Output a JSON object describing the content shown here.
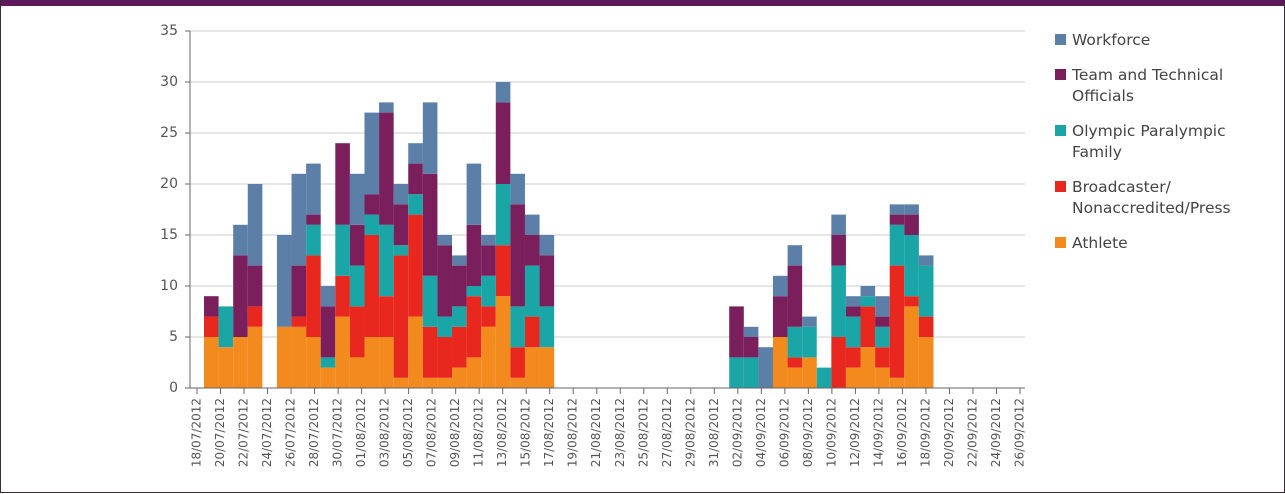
{
  "chart_data": {
    "type": "stacked_bar",
    "xtick_labels": [
      "18/07/2012",
      "20/07/2012",
      "22/07/2012",
      "24/07/2012",
      "26/07/2012",
      "28/07/2012",
      "30/07/2012",
      "01/08/2012",
      "03/08/2012",
      "05/08/2012",
      "07/08/2012",
      "09/08/2012",
      "11/08/2012",
      "13/08/2012",
      "15/08/2012",
      "17/08/2012",
      "19/08/2012",
      "21/08/2012",
      "23/08/2012",
      "25/08/2012",
      "27/08/2012",
      "29/08/2012",
      "31/08/2012",
      "02/09/2012",
      "04/09/2012",
      "06/09/2012",
      "08/09/2012",
      "10/09/2012",
      "12/09/2012",
      "14/09/2012",
      "16/09/2012",
      "18/09/2012",
      "20/09/2012",
      "22/09/2012",
      "24/09/2012",
      "26/09/2012"
    ],
    "ylim": [
      0,
      35
    ],
    "yticks": [
      0,
      5,
      10,
      15,
      20,
      25,
      30,
      35
    ],
    "grid": true,
    "legend": "right",
    "series": [
      {
        "name": "Athlete",
        "color": "#f28a1e",
        "values": [
          5,
          4,
          5,
          6,
          0,
          6,
          6,
          5,
          2,
          7,
          3,
          5,
          5,
          1,
          7,
          1,
          1,
          2,
          3,
          6,
          9,
          1,
          4,
          4,
          0,
          0,
          0,
          0,
          0,
          0,
          0,
          0,
          0,
          0,
          0,
          0,
          0,
          0,
          0,
          5,
          2,
          3,
          0,
          0,
          2,
          4,
          2,
          1,
          8,
          5,
          0,
          0,
          0,
          0,
          0,
          0
        ]
      },
      {
        "name": "Broadcaster/\nNonaccredited/Press",
        "color": "#e8281e",
        "values": [
          2,
          0,
          0,
          2,
          0,
          0,
          1,
          8,
          0,
          4,
          5,
          10,
          4,
          12,
          10,
          5,
          4,
          4,
          6,
          2,
          5,
          3,
          3,
          0,
          0,
          0,
          0,
          0,
          0,
          0,
          0,
          0,
          0,
          0,
          0,
          0,
          0,
          0,
          0,
          0,
          1,
          0,
          0,
          5,
          2,
          4,
          2,
          11,
          1,
          2,
          0,
          0,
          0,
          0,
          0,
          0
        ]
      },
      {
        "name": "Olympic Paralympic\nFamily",
        "color": "#1aa6a6",
        "values": [
          0,
          4,
          0,
          0,
          0,
          0,
          0,
          3,
          1,
          5,
          4,
          2,
          7,
          1,
          2,
          5,
          2,
          2,
          1,
          3,
          6,
          4,
          5,
          4,
          0,
          0,
          0,
          0,
          0,
          0,
          0,
          0,
          0,
          0,
          0,
          0,
          3,
          3,
          0,
          0,
          3,
          3,
          2,
          7,
          3,
          1,
          2,
          4,
          6,
          5,
          0,
          0,
          0,
          0,
          0,
          0
        ]
      },
      {
        "name": "Team and Technical\nOfficials",
        "color": "#7a1f5c",
        "values": [
          2,
          0,
          8,
          4,
          0,
          0,
          5,
          1,
          5,
          8,
          4,
          2,
          11,
          4,
          3,
          10,
          7,
          4,
          6,
          3,
          8,
          10,
          3,
          5,
          0,
          0,
          0,
          0,
          0,
          0,
          0,
          0,
          0,
          0,
          0,
          0,
          5,
          2,
          0,
          4,
          6,
          0,
          0,
          3,
          1,
          0,
          1,
          1,
          2,
          0,
          0,
          0,
          0,
          0,
          0,
          0
        ]
      },
      {
        "name": "Workforce",
        "color": "#5b7fa6",
        "values": [
          0,
          0,
          3,
          8,
          0,
          9,
          9,
          5,
          2,
          0,
          5,
          8,
          1,
          2,
          2,
          7,
          1,
          1,
          6,
          1,
          2,
          3,
          2,
          2,
          0,
          0,
          0,
          0,
          0,
          0,
          0,
          0,
          0,
          0,
          0,
          0,
          0,
          1,
          4,
          2,
          2,
          1,
          0,
          2,
          1,
          1,
          2,
          1,
          1,
          1,
          0,
          0,
          0,
          0,
          0,
          0
        ]
      }
    ]
  }
}
